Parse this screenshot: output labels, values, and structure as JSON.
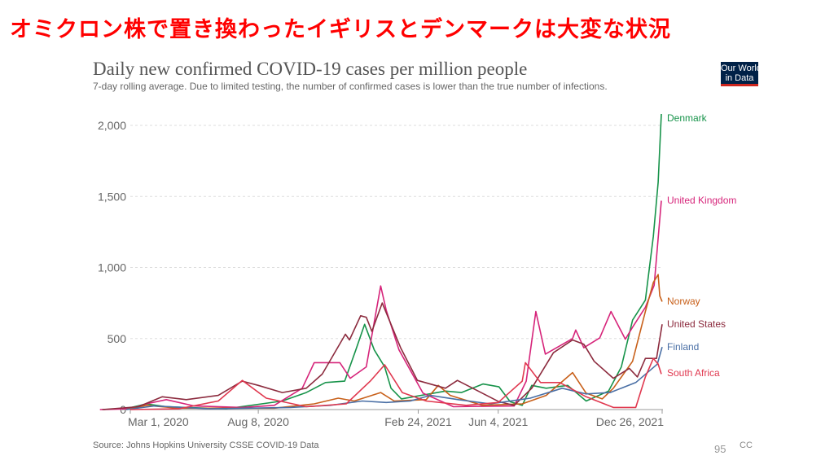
{
  "slide": {
    "title": "オミクロン株で置き換わったイギリスとデンマークは大変な状況",
    "page_number": "95",
    "cc": "CC"
  },
  "logo": {
    "line1": "Our World",
    "line2": "in Data"
  },
  "chart_data": {
    "type": "line",
    "title": "Daily new confirmed COVID-19 cases per million people",
    "subtitle": "7-day rolling average. Due to limited testing, the number of confirmed cases is lower than the true number of infections.",
    "source": "Source: Johns Hopkins University CSSE COVID-19 Data",
    "x_unit": "days since Mar 1, 2020",
    "xlim": [
      -49,
      665
    ],
    "ylim": [
      0,
      2000
    ],
    "grid": true,
    "x_ticks": [
      {
        "day": 0,
        "label": "Mar 1, 2020"
      },
      {
        "day": 160,
        "label": "Aug 8, 2020"
      },
      {
        "day": 360,
        "label": "Feb 24, 2021"
      },
      {
        "day": 460,
        "label": "Jun 4, 2021"
      },
      {
        "day": 665,
        "label": "Dec 26, 2021"
      }
    ],
    "y_ticks": [
      {
        "value": 0,
        "label": "0"
      },
      {
        "value": 500,
        "label": "500"
      },
      {
        "value": 1000,
        "label": "1,000"
      },
      {
        "value": 1500,
        "label": "1,500"
      },
      {
        "value": 2000,
        "label": "2,000"
      }
    ],
    "series": [
      {
        "name": "Denmark",
        "color": "#17934a",
        "points": [
          [
            -10,
            0
          ],
          [
            20,
            40
          ],
          [
            45,
            20
          ],
          [
            120,
            5
          ],
          [
            190,
            60
          ],
          [
            220,
            120
          ],
          [
            244,
            190
          ],
          [
            268,
            200
          ],
          [
            282,
            420
          ],
          [
            293,
            600
          ],
          [
            305,
            420
          ],
          [
            318,
            300
          ],
          [
            326,
            150
          ],
          [
            339,
            75
          ],
          [
            394,
            130
          ],
          [
            414,
            120
          ],
          [
            441,
            180
          ],
          [
            461,
            160
          ],
          [
            475,
            55
          ],
          [
            490,
            30
          ],
          [
            502,
            170
          ],
          [
            520,
            150
          ],
          [
            547,
            170
          ],
          [
            570,
            60
          ],
          [
            598,
            130
          ],
          [
            614,
            300
          ],
          [
            628,
            630
          ],
          [
            644,
            770
          ],
          [
            654,
            1220
          ],
          [
            660,
            1600
          ],
          [
            664,
            2080
          ]
        ]
      },
      {
        "name": "United Kingdom",
        "color": "#d6247a",
        "points": [
          [
            -38,
            0
          ],
          [
            0,
            5
          ],
          [
            20,
            40
          ],
          [
            45,
            70
          ],
          [
            80,
            25
          ],
          [
            140,
            15
          ],
          [
            180,
            30
          ],
          [
            215,
            150
          ],
          [
            230,
            330
          ],
          [
            262,
            330
          ],
          [
            275,
            220
          ],
          [
            295,
            300
          ],
          [
            313,
            870
          ],
          [
            320,
            700
          ],
          [
            336,
            420
          ],
          [
            366,
            115
          ],
          [
            404,
            20
          ],
          [
            480,
            25
          ],
          [
            495,
            200
          ],
          [
            507,
            690
          ],
          [
            519,
            390
          ],
          [
            553,
            500
          ],
          [
            557,
            560
          ],
          [
            567,
            435
          ],
          [
            587,
            505
          ],
          [
            601,
            690
          ],
          [
            619,
            495
          ],
          [
            628,
            580
          ],
          [
            644,
            720
          ],
          [
            655,
            875
          ],
          [
            664,
            1470
          ]
        ]
      },
      {
        "name": "Norway",
        "color": "#c8601a",
        "points": [
          [
            -5,
            0
          ],
          [
            20,
            30
          ],
          [
            60,
            10
          ],
          [
            180,
            10
          ],
          [
            230,
            40
          ],
          [
            260,
            80
          ],
          [
            280,
            60
          ],
          [
            313,
            120
          ],
          [
            330,
            60
          ],
          [
            370,
            70
          ],
          [
            385,
            170
          ],
          [
            400,
            100
          ],
          [
            440,
            30
          ],
          [
            490,
            40
          ],
          [
            520,
            100
          ],
          [
            553,
            260
          ],
          [
            570,
            115
          ],
          [
            590,
            75
          ],
          [
            604,
            150
          ],
          [
            628,
            340
          ],
          [
            644,
            690
          ],
          [
            654,
            895
          ],
          [
            660,
            950
          ],
          [
            662,
            800
          ],
          [
            665,
            760
          ]
        ]
      },
      {
        "name": "United States",
        "color": "#8c2b3e",
        "points": [
          [
            -35,
            0
          ],
          [
            10,
            20
          ],
          [
            40,
            90
          ],
          [
            70,
            70
          ],
          [
            110,
            100
          ],
          [
            140,
            200
          ],
          [
            160,
            170
          ],
          [
            190,
            120
          ],
          [
            220,
            150
          ],
          [
            240,
            250
          ],
          [
            269,
            530
          ],
          [
            274,
            490
          ],
          [
            288,
            660
          ],
          [
            295,
            650
          ],
          [
            302,
            550
          ],
          [
            315,
            750
          ],
          [
            338,
            435
          ],
          [
            359,
            205
          ],
          [
            394,
            150
          ],
          [
            409,
            205
          ],
          [
            435,
            130
          ],
          [
            461,
            55
          ],
          [
            480,
            30
          ],
          [
            502,
            150
          ],
          [
            529,
            400
          ],
          [
            553,
            490
          ],
          [
            567,
            460
          ],
          [
            580,
            340
          ],
          [
            604,
            220
          ],
          [
            624,
            290
          ],
          [
            634,
            230
          ],
          [
            644,
            360
          ],
          [
            658,
            360
          ],
          [
            665,
            600
          ]
        ]
      },
      {
        "name": "Finland",
        "color": "#4a6fa5",
        "points": [
          [
            -5,
            0
          ],
          [
            30,
            25
          ],
          [
            100,
            5
          ],
          [
            200,
            15
          ],
          [
            250,
            30
          ],
          [
            290,
            60
          ],
          [
            320,
            50
          ],
          [
            350,
            60
          ],
          [
            375,
            100
          ],
          [
            410,
            70
          ],
          [
            450,
            40
          ],
          [
            500,
            80
          ],
          [
            540,
            150
          ],
          [
            570,
            110
          ],
          [
            600,
            120
          ],
          [
            632,
            190
          ],
          [
            659,
            320
          ],
          [
            665,
            440
          ]
        ]
      },
      {
        "name": "South Africa",
        "color": "#e0384f",
        "points": [
          [
            0,
            0
          ],
          [
            60,
            5
          ],
          [
            110,
            60
          ],
          [
            140,
            205
          ],
          [
            170,
            80
          ],
          [
            220,
            20
          ],
          [
            270,
            40
          ],
          [
            300,
            200
          ],
          [
            318,
            315
          ],
          [
            340,
            120
          ],
          [
            370,
            60
          ],
          [
            420,
            30
          ],
          [
            460,
            50
          ],
          [
            490,
            200
          ],
          [
            494,
            330
          ],
          [
            513,
            190
          ],
          [
            537,
            190
          ],
          [
            570,
            90
          ],
          [
            604,
            15
          ],
          [
            632,
            15
          ],
          [
            644,
            230
          ],
          [
            654,
            360
          ],
          [
            660,
            320
          ],
          [
            664,
            250
          ]
        ]
      }
    ]
  }
}
